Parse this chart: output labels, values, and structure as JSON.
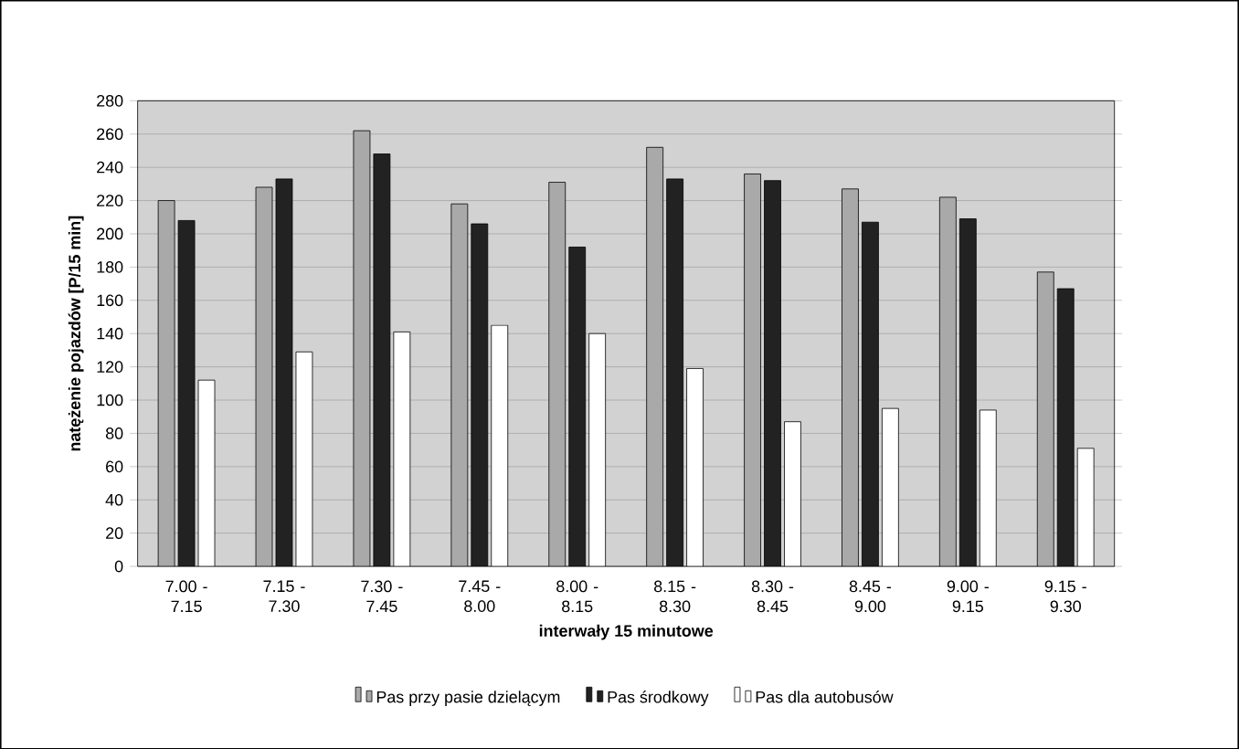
{
  "chart_data": {
    "type": "bar",
    "xlabel": "interwały 15 minutowe",
    "ylabel": "natężenie pojazdów [P/15 min]",
    "categories": [
      "7.00 - 7.15",
      "7.15 - 7.30",
      "7.30 - 7.45",
      "7.45 - 8.00",
      "8.00 - 8.15",
      "8.15 - 8.30",
      "8.30 - 8.45",
      "8.45 - 9.00",
      "9.00 - 9.15",
      "9.15 - 9.30"
    ],
    "series": [
      {
        "name": "Pas przy pasie dzielącym",
        "color": "#a9a9a9",
        "values": [
          220,
          228,
          262,
          218,
          231,
          252,
          236,
          227,
          222,
          177
        ]
      },
      {
        "name": "Pas środkowy",
        "color": "#222222",
        "values": [
          208,
          233,
          248,
          206,
          192,
          233,
          232,
          207,
          209,
          167
        ]
      },
      {
        "name": "Pas dla autobusów",
        "color": "#ffffff",
        "values": [
          112,
          129,
          141,
          145,
          140,
          119,
          87,
          95,
          94,
          71
        ]
      }
    ],
    "ylim": [
      0,
      280
    ],
    "yticks": [
      0,
      20,
      40,
      60,
      80,
      100,
      120,
      140,
      160,
      180,
      200,
      220,
      240,
      260,
      280
    ],
    "grid": "y",
    "legend": "bottom"
  }
}
